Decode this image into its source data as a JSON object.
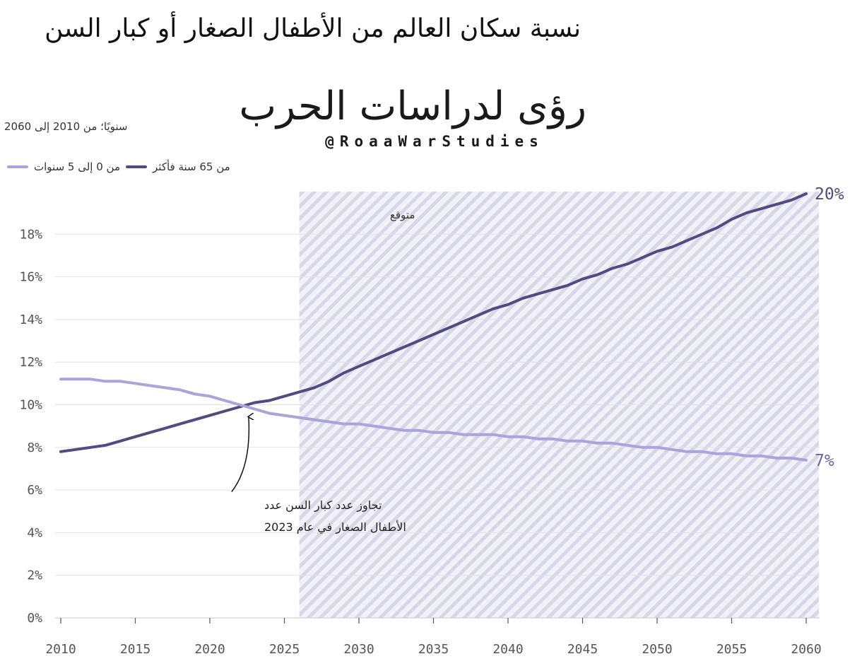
{
  "title": "نسبة سكان العالم من الأطفال الصغار أو كبار السن",
  "subtitle": "سنويًا؛ من 2010 إلى 2060",
  "logo": {
    "script_text": "رؤى لدراسات الحرب",
    "handle": "@RoaaWarStudies"
  },
  "chart_data": {
    "type": "line",
    "title": "نسبة سكان العالم من الأطفال الصغار أو كبار السن",
    "subtitle": "سنويًا؛ من 2010 إلى 2060",
    "xlabel": "",
    "ylabel": "",
    "xlim": [
      2010,
      2060
    ],
    "ylim": [
      0,
      20
    ],
    "x_ticks": [
      2010,
      2015,
      2020,
      2025,
      2030,
      2035,
      2040,
      2045,
      2050,
      2055,
      2060
    ],
    "y_ticks": [
      0,
      2,
      4,
      6,
      8,
      10,
      12,
      14,
      16,
      18
    ],
    "y_tick_suffix": "%",
    "grid": "horizontal",
    "forecast": {
      "from": 2026,
      "to": 2060,
      "label": "متوقع"
    },
    "series": [
      {
        "name": "من 65 سنة فأكثر",
        "color": "#4f4c82",
        "end_label": "20%",
        "x": [
          2010,
          2011,
          2012,
          2013,
          2014,
          2015,
          2016,
          2017,
          2018,
          2019,
          2020,
          2021,
          2022,
          2023,
          2024,
          2025,
          2026,
          2027,
          2028,
          2029,
          2030,
          2031,
          2032,
          2033,
          2034,
          2035,
          2036,
          2037,
          2038,
          2039,
          2040,
          2041,
          2042,
          2043,
          2044,
          2045,
          2046,
          2047,
          2048,
          2049,
          2050,
          2051,
          2052,
          2053,
          2054,
          2055,
          2056,
          2057,
          2058,
          2059,
          2060
        ],
        "values": [
          7.8,
          7.9,
          8.0,
          8.1,
          8.3,
          8.5,
          8.7,
          8.9,
          9.1,
          9.3,
          9.5,
          9.7,
          9.9,
          10.1,
          10.2,
          10.4,
          10.6,
          10.8,
          11.1,
          11.5,
          11.8,
          12.1,
          12.4,
          12.7,
          13.0,
          13.3,
          13.6,
          13.9,
          14.2,
          14.5,
          14.7,
          15.0,
          15.2,
          15.4,
          15.6,
          15.9,
          16.1,
          16.4,
          16.6,
          16.9,
          17.2,
          17.4,
          17.7,
          18.0,
          18.3,
          18.7,
          19.0,
          19.2,
          19.4,
          19.6,
          19.9
        ]
      },
      {
        "name": "من 0 إلى 5 سنوات",
        "color": "#a9a4dc",
        "end_label": "7%",
        "x": [
          2010,
          2011,
          2012,
          2013,
          2014,
          2015,
          2016,
          2017,
          2018,
          2019,
          2020,
          2021,
          2022,
          2023,
          2024,
          2025,
          2026,
          2027,
          2028,
          2029,
          2030,
          2031,
          2032,
          2033,
          2034,
          2035,
          2036,
          2037,
          2038,
          2039,
          2040,
          2041,
          2042,
          2043,
          2044,
          2045,
          2046,
          2047,
          2048,
          2049,
          2050,
          2051,
          2052,
          2053,
          2054,
          2055,
          2056,
          2057,
          2058,
          2059,
          2060
        ],
        "values": [
          11.2,
          11.2,
          11.2,
          11.1,
          11.1,
          11.0,
          10.9,
          10.8,
          10.7,
          10.5,
          10.4,
          10.2,
          10.0,
          9.8,
          9.6,
          9.5,
          9.4,
          9.3,
          9.2,
          9.1,
          9.1,
          9.0,
          8.9,
          8.8,
          8.8,
          8.7,
          8.7,
          8.6,
          8.6,
          8.6,
          8.5,
          8.5,
          8.4,
          8.4,
          8.3,
          8.3,
          8.2,
          8.2,
          8.1,
          8.0,
          8.0,
          7.9,
          7.8,
          7.8,
          7.7,
          7.7,
          7.6,
          7.6,
          7.5,
          7.5,
          7.4
        ]
      }
    ],
    "annotation": {
      "lines": [
        "تجاوز عدد كبار السن عدد",
        "الأطفال الصغار في عام 2023"
      ],
      "point_x": 2022.6,
      "point_y": 9.9
    }
  }
}
